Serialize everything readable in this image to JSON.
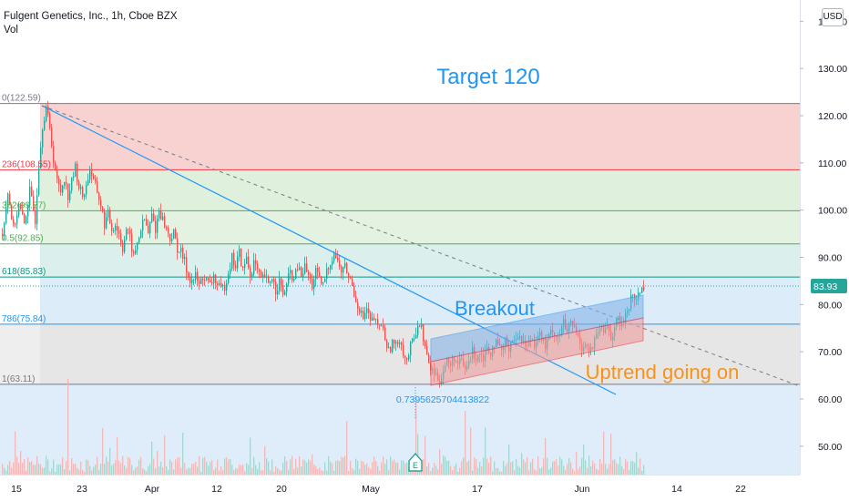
{
  "header": {
    "symbol_line": "Fulgent Genetics, Inc., 1h, Cboe BZX",
    "sub_label": "Vol",
    "currency_button": "USD"
  },
  "price_axis": {
    "ticks": [
      "140.00",
      "130.00",
      "120.00",
      "110.00",
      "100.00",
      "90.00",
      "80.00",
      "70.00",
      "60.00",
      "50.00"
    ],
    "last_price": "83.93"
  },
  "time_axis": {
    "ticks": [
      "15",
      "23",
      "Apr",
      "12",
      "20",
      "May",
      "17",
      "Jun",
      "14",
      "22"
    ]
  },
  "fib_levels": [
    {
      "label": "0(122.59)",
      "color": "#787b86"
    },
    {
      "label": "236(108.55)",
      "color": "#f23645"
    },
    {
      "label": "382(99.87)",
      "color": "#4caf50"
    },
    {
      "label": "0.5(92.85)",
      "color": "#4caf50"
    },
    {
      "label": "618(85.83)",
      "color": "#089981"
    },
    {
      "label": "786(75.84)",
      "color": "#2196f3"
    },
    {
      "label": "1(63.11)",
      "color": "#787b86"
    }
  ],
  "annotations": {
    "target": "Target 120",
    "breakout": "Breakout",
    "uptrend": "Uptrend going on",
    "fib_ext": "0.7395625704413822",
    "earnings": "E"
  },
  "colors": {
    "up": "#26a69a",
    "down": "#ef5350",
    "annotation_blue": "#2196f3",
    "annotation_orange": "#f7931a"
  },
  "chart_data": {
    "type": "candlestick",
    "title": "Fulgent Genetics, Inc., 1h, Cboe BZX",
    "ylim": [
      45,
      145
    ],
    "y_ticks": [
      140,
      130,
      120,
      110,
      100,
      90,
      80,
      70,
      60,
      50
    ],
    "x_ticks": [
      "15",
      "23",
      "Apr",
      "12",
      "20",
      "May",
      "17",
      "Jun",
      "14",
      "22"
    ],
    "last_price": 83.93,
    "fibonacci": [
      {
        "ratio": 0,
        "price": 122.59
      },
      {
        "ratio": 0.236,
        "price": 108.55
      },
      {
        "ratio": 0.382,
        "price": 99.87
      },
      {
        "ratio": 0.5,
        "price": 92.85
      },
      {
        "ratio": 0.618,
        "price": 85.83
      },
      {
        "ratio": 0.786,
        "price": 75.84
      },
      {
        "ratio": 1,
        "price": 63.11
      }
    ],
    "price_path": [
      [
        0,
        95
      ],
      [
        6,
        104
      ],
      [
        12,
        96
      ],
      [
        18,
        101
      ],
      [
        24,
        97
      ],
      [
        30,
        104
      ],
      [
        36,
        98
      ],
      [
        40,
        110
      ],
      [
        44,
        118
      ],
      [
        48,
        122
      ],
      [
        52,
        117
      ],
      [
        56,
        111
      ],
      [
        60,
        106
      ],
      [
        64,
        104
      ],
      [
        68,
        107
      ],
      [
        72,
        103
      ],
      [
        76,
        106
      ],
      [
        80,
        109
      ],
      [
        84,
        105
      ],
      [
        88,
        103
      ],
      [
        92,
        105
      ],
      [
        96,
        109
      ],
      [
        100,
        106
      ],
      [
        104,
        104
      ],
      [
        108,
        101
      ],
      [
        112,
        97
      ],
      [
        116,
        99
      ],
      [
        120,
        96
      ],
      [
        124,
        97
      ],
      [
        128,
        95
      ],
      [
        132,
        92
      ],
      [
        136,
        96
      ],
      [
        140,
        94
      ],
      [
        144,
        90
      ],
      [
        148,
        93
      ],
      [
        152,
        96
      ],
      [
        156,
        98
      ],
      [
        160,
        95
      ],
      [
        164,
        99
      ],
      [
        168,
        96
      ],
      [
        172,
        100
      ],
      [
        176,
        98
      ],
      [
        180,
        96
      ],
      [
        184,
        94
      ],
      [
        188,
        95
      ],
      [
        192,
        92
      ],
      [
        196,
        91
      ],
      [
        200,
        89
      ],
      [
        204,
        86
      ],
      [
        208,
        85
      ],
      [
        212,
        86
      ],
      [
        216,
        84
      ],
      [
        220,
        86
      ],
      [
        224,
        85
      ],
      [
        228,
        84
      ],
      [
        232,
        86
      ],
      [
        236,
        84
      ],
      [
        240,
        83
      ],
      [
        244,
        84
      ],
      [
        248,
        87
      ],
      [
        252,
        90
      ],
      [
        256,
        88
      ],
      [
        260,
        91
      ],
      [
        264,
        87
      ],
      [
        268,
        90
      ],
      [
        272,
        86
      ],
      [
        276,
        89
      ],
      [
        280,
        87
      ],
      [
        284,
        85
      ],
      [
        288,
        86
      ],
      [
        292,
        84
      ],
      [
        296,
        86
      ],
      [
        300,
        83
      ],
      [
        304,
        85
      ],
      [
        308,
        82
      ],
      [
        312,
        84
      ],
      [
        316,
        87
      ],
      [
        320,
        85
      ],
      [
        324,
        88
      ],
      [
        328,
        86
      ],
      [
        332,
        88
      ],
      [
        336,
        86
      ],
      [
        340,
        84
      ],
      [
        344,
        87
      ],
      [
        348,
        85
      ],
      [
        352,
        84
      ],
      [
        356,
        87
      ],
      [
        360,
        89
      ],
      [
        364,
        91
      ],
      [
        368,
        89
      ],
      [
        372,
        87
      ],
      [
        376,
        88
      ],
      [
        380,
        86
      ],
      [
        384,
        84
      ],
      [
        388,
        81
      ],
      [
        392,
        79
      ],
      [
        396,
        77
      ],
      [
        400,
        79
      ],
      [
        404,
        76
      ],
      [
        408,
        77
      ],
      [
        412,
        75
      ],
      [
        416,
        76
      ],
      [
        420,
        73
      ],
      [
        424,
        70
      ],
      [
        428,
        72
      ],
      [
        432,
        71
      ],
      [
        436,
        73
      ],
      [
        440,
        70
      ],
      [
        444,
        68
      ],
      [
        448,
        71
      ],
      [
        452,
        73
      ],
      [
        456,
        76
      ],
      [
        460,
        75
      ],
      [
        464,
        71
      ],
      [
        468,
        67
      ],
      [
        472,
        66
      ],
      [
        476,
        65
      ],
      [
        480,
        64
      ],
      [
        484,
        66
      ],
      [
        488,
        68
      ],
      [
        492,
        67
      ],
      [
        496,
        69
      ],
      [
        500,
        67
      ],
      [
        504,
        68
      ],
      [
        508,
        66
      ],
      [
        512,
        68
      ],
      [
        516,
        70
      ],
      [
        520,
        69
      ],
      [
        524,
        70
      ],
      [
        528,
        69
      ],
      [
        532,
        71
      ],
      [
        536,
        70
      ],
      [
        540,
        72
      ],
      [
        544,
        71
      ],
      [
        548,
        70
      ],
      [
        552,
        72
      ],
      [
        556,
        71
      ],
      [
        560,
        73
      ],
      [
        564,
        72
      ],
      [
        568,
        74
      ],
      [
        572,
        72
      ],
      [
        576,
        71
      ],
      [
        580,
        73
      ],
      [
        584,
        72
      ],
      [
        588,
        74
      ],
      [
        592,
        73
      ],
      [
        596,
        71
      ],
      [
        600,
        73
      ],
      [
        604,
        75
      ],
      [
        608,
        73
      ],
      [
        612,
        74
      ],
      [
        616,
        76
      ],
      [
        620,
        74
      ],
      [
        624,
        76
      ],
      [
        628,
        75
      ],
      [
        632,
        73
      ],
      [
        636,
        71
      ],
      [
        640,
        72
      ],
      [
        644,
        70
      ],
      [
        648,
        71
      ],
      [
        652,
        73
      ],
      [
        656,
        75
      ],
      [
        660,
        74
      ],
      [
        664,
        76
      ],
      [
        668,
        73
      ],
      [
        672,
        75
      ],
      [
        676,
        77
      ],
      [
        680,
        75
      ],
      [
        684,
        78
      ],
      [
        688,
        80
      ],
      [
        692,
        82
      ],
      [
        696,
        81
      ],
      [
        700,
        83
      ],
      [
        704,
        84
      ],
      [
        706,
        83.93
      ]
    ]
  }
}
